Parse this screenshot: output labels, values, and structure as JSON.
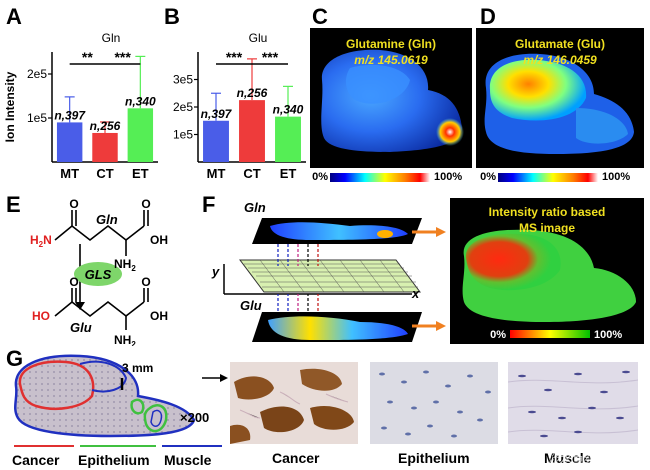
{
  "panels": {
    "a": "A",
    "b": "B",
    "c": "C",
    "d": "D",
    "e": "E",
    "f": "F",
    "g": "G"
  },
  "chart_data": [
    {
      "type": "bar",
      "title": "Gln",
      "ylabel": "Ion Intensity",
      "categories": [
        "MT",
        "CT",
        "ET"
      ],
      "values": [
        90000,
        66000,
        122000
      ],
      "errors": [
        58000,
        25000,
        118000
      ],
      "n_labels": [
        "n,397",
        "n,256",
        "n,340"
      ],
      "yticks": [
        "1e5",
        "2e5"
      ],
      "ytick_values": [
        100000,
        200000
      ],
      "ylim": [
        0,
        250000
      ],
      "colors": [
        "#4a5de8",
        "#ee3b3b",
        "#55ee55"
      ],
      "significance": [
        "**",
        "***"
      ]
    },
    {
      "type": "bar",
      "title": "Glu",
      "ylabel": "",
      "categories": [
        "MT",
        "CT",
        "ET"
      ],
      "values": [
        150000,
        225000,
        165000
      ],
      "errors": [
        100000,
        150000,
        110000
      ],
      "n_labels": [
        "n,397",
        "n,256",
        "n,340"
      ],
      "yticks": [
        "1e5",
        "2e5",
        "3e5"
      ],
      "ytick_values": [
        100000,
        200000,
        300000
      ],
      "ylim": [
        0,
        400000
      ],
      "colors": [
        "#4a5de8",
        "#ee3b3b",
        "#55ee55"
      ],
      "significance": [
        "***",
        "***"
      ]
    }
  ],
  "ms": {
    "c_title": "Glutamine (Gln)",
    "c_mz": "m/z 145.0619",
    "d_title": "Glutamate (Glu)",
    "d_mz": "m/z 146.0459",
    "scale_min": "0%",
    "scale_max": "100%"
  },
  "chem": {
    "gln": "Gln",
    "glu": "Glu",
    "gls": "GLS",
    "nh2": "NH",
    "sub2": "2",
    "h2n": "H",
    "h2n_n": "N",
    "oh": "OH",
    "ho": "HO",
    "o": "O"
  },
  "schematic": {
    "gln": "Gln",
    "glu": "Glu",
    "y_axis": "y",
    "x_axis": "x",
    "ratio_title_1": "Intensity ratio based",
    "ratio_title_2": "MS image",
    "scale_min": "0%",
    "scale_max": "100%"
  },
  "histology": {
    "scale_bar": "3 mm",
    "magnification": "×200",
    "legend": [
      "Cancer",
      "Epithelium",
      "Muscle"
    ],
    "legend_colors": [
      "#e03030",
      "#40c040",
      "#2030c0"
    ],
    "photo_labels": [
      "Cancer",
      "Epithelium",
      "Muscle"
    ],
    "watermark": "淡水鱼组学"
  }
}
